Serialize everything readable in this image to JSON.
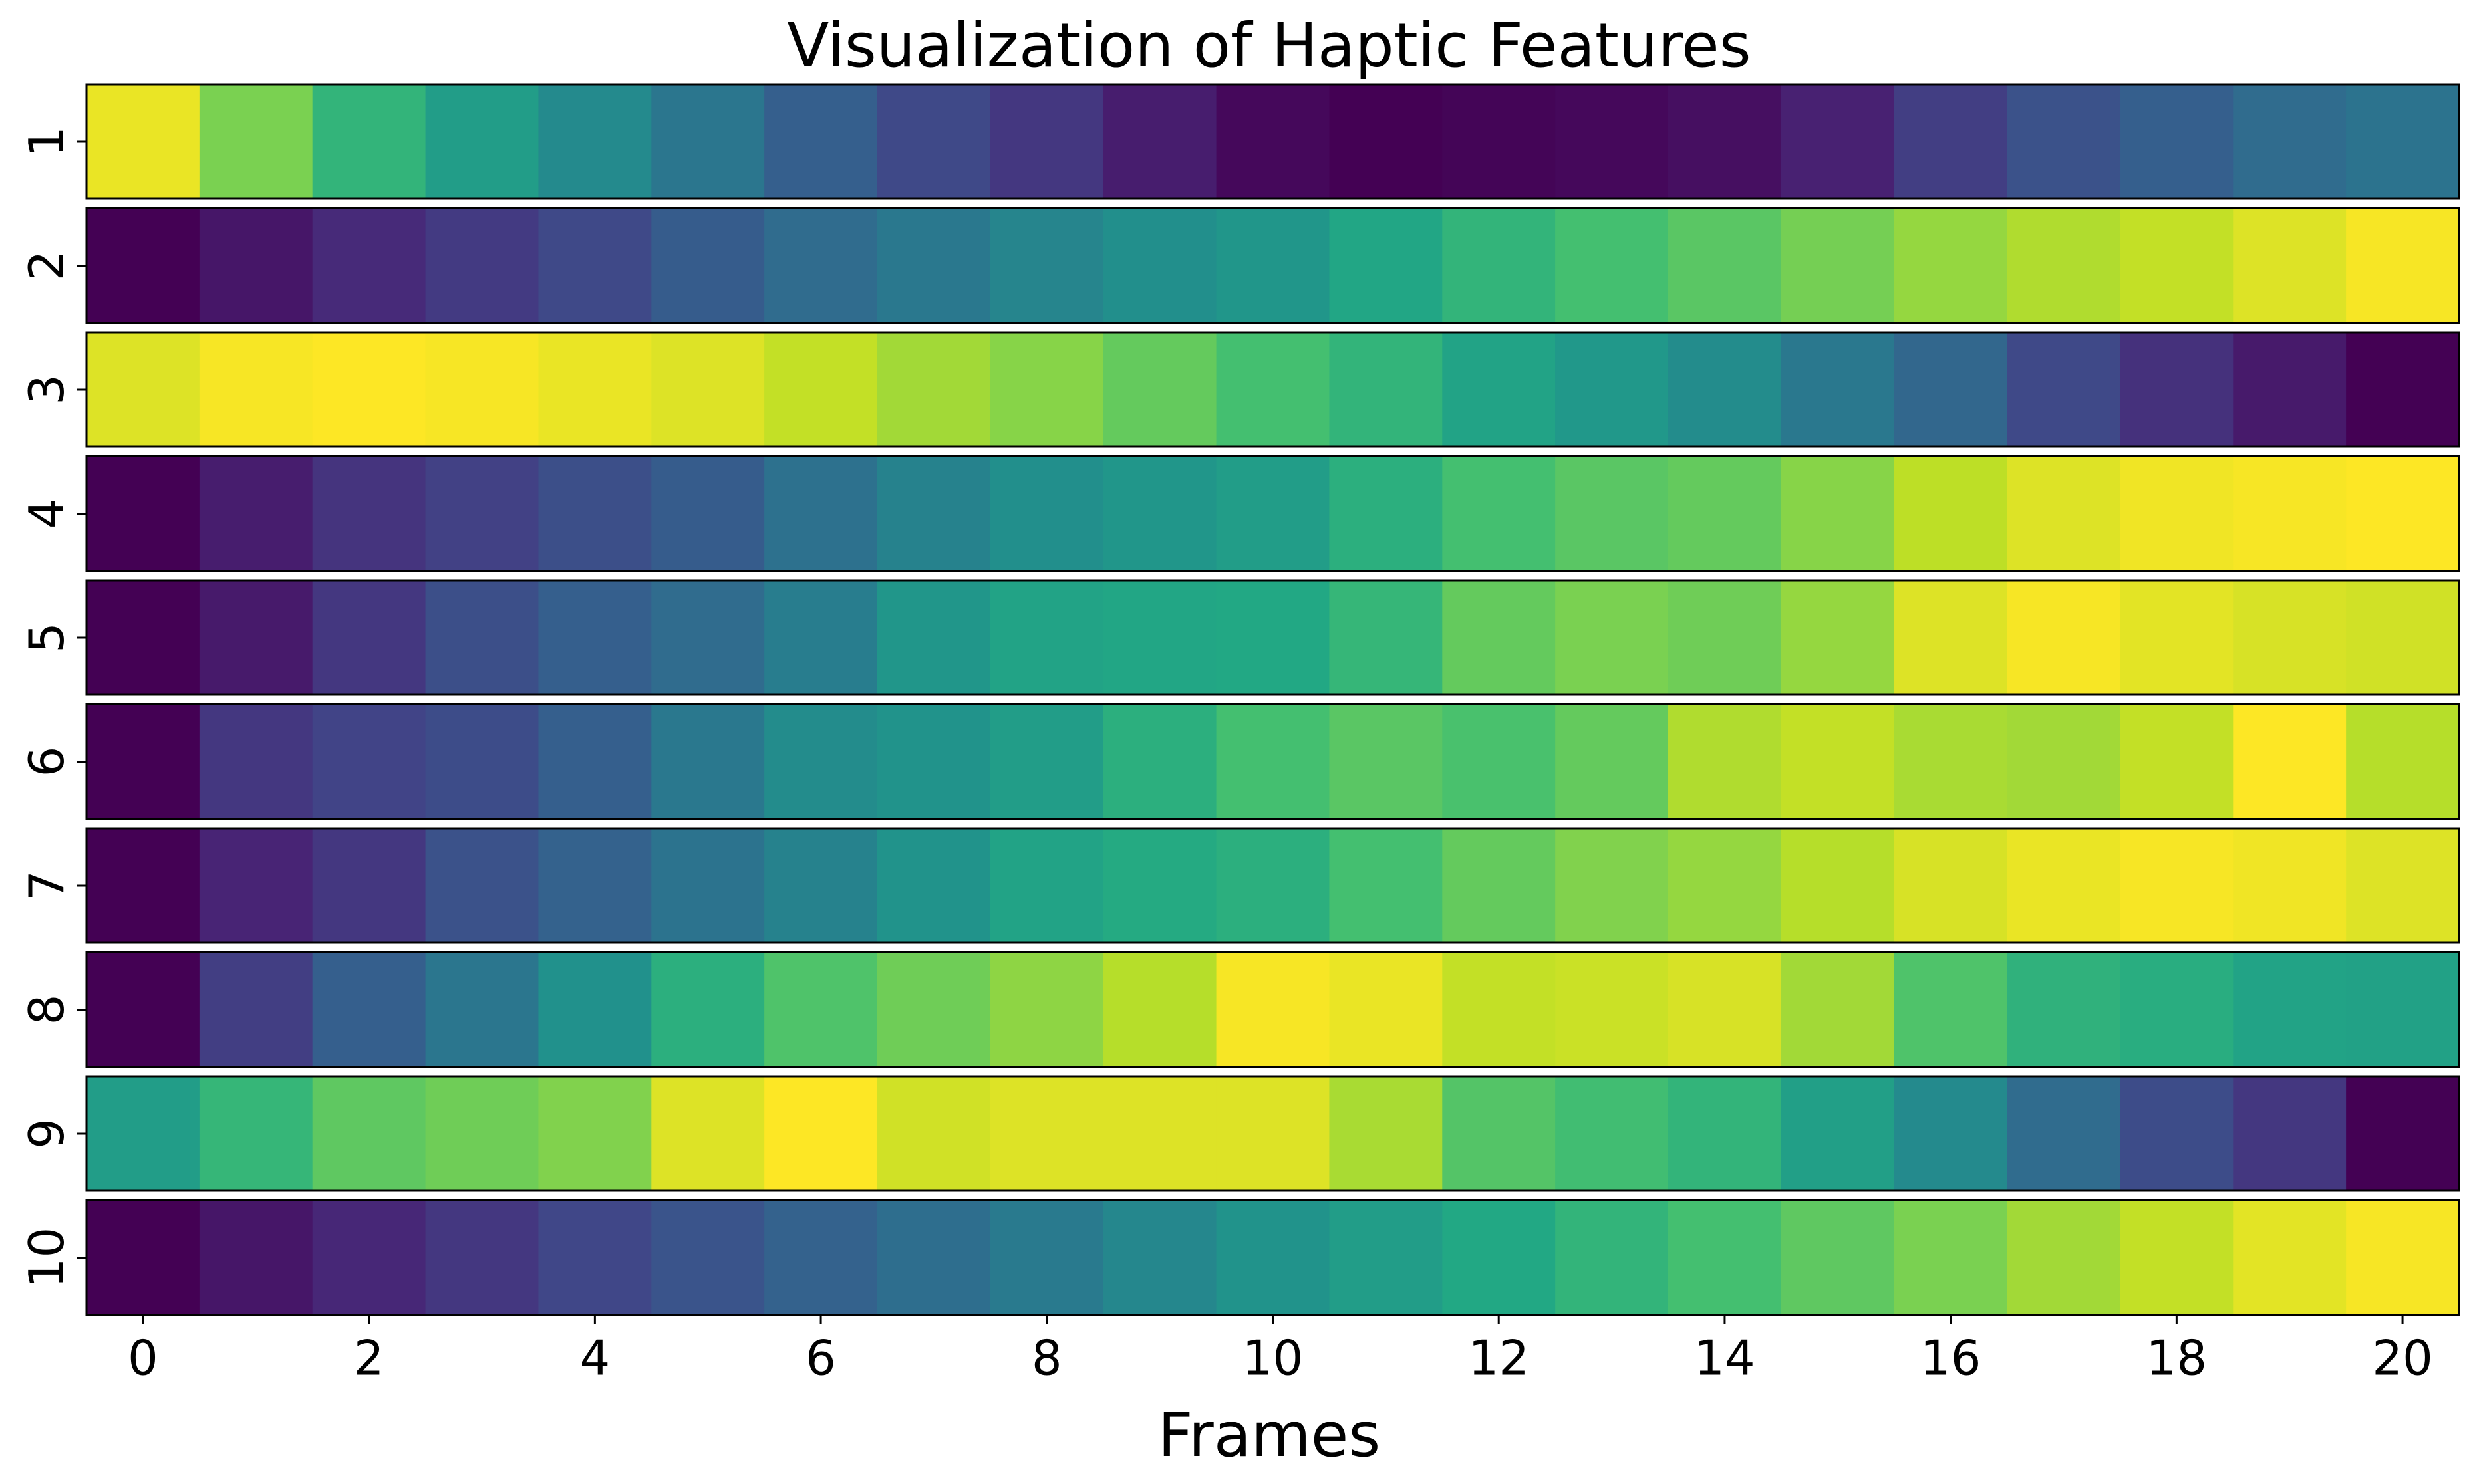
{
  "chart_data": {
    "type": "heatmap",
    "title": "Visualization of Haptic Features",
    "xlabel": "Frames",
    "ylabel": "",
    "colormap": "viridis",
    "value_range": [
      0,
      1
    ],
    "x": [
      0,
      1,
      2,
      3,
      4,
      5,
      6,
      7,
      8,
      9,
      10,
      11,
      12,
      13,
      14,
      15,
      16,
      17,
      18,
      19,
      20
    ],
    "x_ticks": [
      0,
      2,
      4,
      6,
      8,
      10,
      12,
      14,
      16,
      18,
      20
    ],
    "xlim": [
      -0.5,
      20.5
    ],
    "grid": false,
    "legend": "none",
    "rows": [
      {
        "label": "1",
        "values": [
          0.97,
          0.8,
          0.65,
          0.55,
          0.47,
          0.39,
          0.3,
          0.22,
          0.16,
          0.08,
          0.02,
          0.0,
          0.01,
          0.02,
          0.04,
          0.09,
          0.18,
          0.25,
          0.3,
          0.35,
          0.38
        ]
      },
      {
        "label": "2",
        "values": [
          0.0,
          0.06,
          0.12,
          0.17,
          0.22,
          0.29,
          0.35,
          0.4,
          0.45,
          0.49,
          0.52,
          0.59,
          0.65,
          0.7,
          0.74,
          0.79,
          0.84,
          0.88,
          0.91,
          0.95,
          0.99
        ]
      },
      {
        "label": "3",
        "values": [
          0.95,
          0.99,
          1.0,
          0.99,
          0.97,
          0.95,
          0.91,
          0.86,
          0.82,
          0.76,
          0.7,
          0.65,
          0.58,
          0.53,
          0.48,
          0.4,
          0.33,
          0.22,
          0.14,
          0.07,
          0.0
        ]
      },
      {
        "label": "4",
        "values": [
          0.0,
          0.08,
          0.15,
          0.19,
          0.24,
          0.29,
          0.37,
          0.44,
          0.49,
          0.52,
          0.55,
          0.63,
          0.7,
          0.74,
          0.76,
          0.82,
          0.9,
          0.95,
          0.98,
          0.99,
          1.0
        ]
      },
      {
        "label": "5",
        "values": [
          0.0,
          0.07,
          0.16,
          0.24,
          0.3,
          0.35,
          0.42,
          0.52,
          0.58,
          0.59,
          0.6,
          0.66,
          0.76,
          0.8,
          0.78,
          0.84,
          0.95,
          0.99,
          0.96,
          0.94,
          0.93
        ]
      },
      {
        "label": "6",
        "values": [
          0.0,
          0.16,
          0.2,
          0.23,
          0.3,
          0.4,
          0.48,
          0.51,
          0.55,
          0.63,
          0.7,
          0.74,
          0.71,
          0.76,
          0.88,
          0.91,
          0.87,
          0.86,
          0.91,
          1.0,
          0.89
        ]
      },
      {
        "label": "7",
        "values": [
          0.0,
          0.1,
          0.16,
          0.25,
          0.31,
          0.38,
          0.44,
          0.51,
          0.58,
          0.61,
          0.63,
          0.7,
          0.76,
          0.81,
          0.84,
          0.89,
          0.94,
          0.97,
          0.99,
          0.98,
          0.95
        ]
      },
      {
        "label": "8",
        "values": [
          0.0,
          0.18,
          0.3,
          0.39,
          0.5,
          0.63,
          0.72,
          0.78,
          0.83,
          0.89,
          0.99,
          0.97,
          0.91,
          0.92,
          0.94,
          0.86,
          0.72,
          0.64,
          0.62,
          0.58,
          0.57
        ]
      },
      {
        "label": "9",
        "values": [
          0.55,
          0.66,
          0.75,
          0.78,
          0.81,
          0.95,
          1.0,
          0.93,
          0.95,
          0.95,
          0.95,
          0.87,
          0.73,
          0.69,
          0.65,
          0.56,
          0.47,
          0.35,
          0.23,
          0.16,
          0.0
        ]
      },
      {
        "label": "10",
        "values": [
          0.0,
          0.06,
          0.11,
          0.16,
          0.21,
          0.26,
          0.31,
          0.36,
          0.41,
          0.46,
          0.51,
          0.55,
          0.6,
          0.65,
          0.7,
          0.75,
          0.8,
          0.86,
          0.91,
          0.96,
          0.99
        ]
      }
    ]
  }
}
